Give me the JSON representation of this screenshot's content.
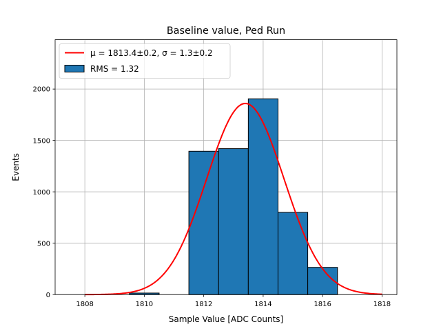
{
  "chart_data": {
    "type": "bar",
    "title": "Baseline value, Ped Run",
    "xlabel": "Sample Value [ADC Counts]",
    "ylabel": "Events",
    "xlim": [
      1807,
      1818.5
    ],
    "ylim": [
      0,
      2480
    ],
    "xticks": [
      1808,
      1810,
      1812,
      1814,
      1816,
      1818
    ],
    "yticks": [
      0,
      500,
      1000,
      1500,
      2000
    ],
    "grid": true,
    "legend_position": "top-left",
    "histogram": {
      "name": "RMS = 1.32",
      "color": "#1f77b4",
      "edgecolor": "#000000",
      "bins": [
        {
          "left": 1807.5,
          "right": 1808.5,
          "value": 0
        },
        {
          "left": 1808.5,
          "right": 1809.5,
          "value": 0
        },
        {
          "left": 1809.5,
          "right": 1810.5,
          "value": 15
        },
        {
          "left": 1810.5,
          "right": 1811.5,
          "value": 0
        },
        {
          "left": 1811.5,
          "right": 1812.5,
          "value": 1395
        },
        {
          "left": 1812.5,
          "right": 1813.5,
          "value": 1420
        },
        {
          "left": 1813.5,
          "right": 1814.5,
          "value": 1905
        },
        {
          "left": 1814.5,
          "right": 1815.5,
          "value": 800
        },
        {
          "left": 1815.5,
          "right": 1816.5,
          "value": 265
        }
      ]
    },
    "fit": {
      "name": "μ = 1813.4±0.2, σ = 1.3±0.2",
      "color": "#ff0000",
      "amplitude": 1860,
      "mu": 1813.4,
      "sigma": 1.3,
      "x_range": [
        1808,
        1818
      ]
    }
  }
}
